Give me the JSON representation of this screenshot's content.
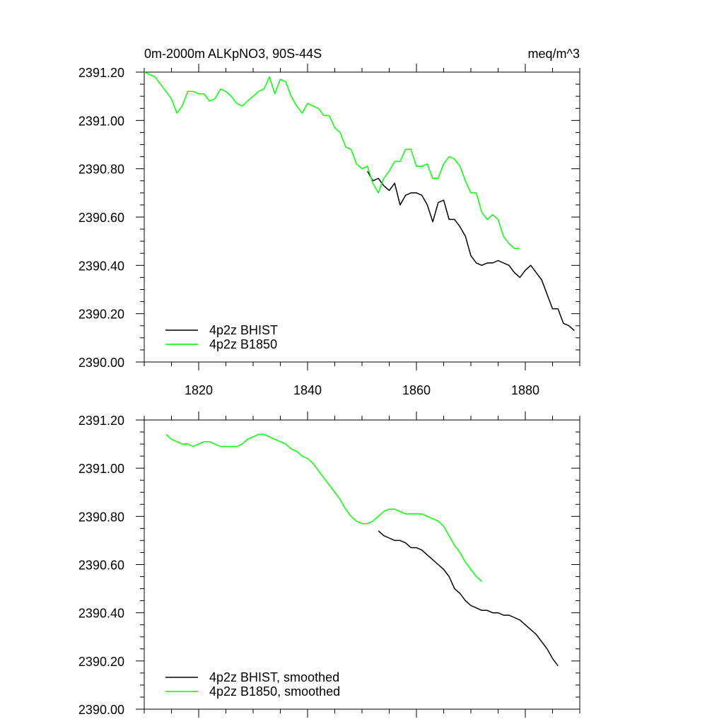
{
  "chart_data": [
    {
      "type": "line",
      "title": "0m-2000m ALKpNO3, 90S-44S",
      "units": "meq/m^3",
      "xlim": [
        1810,
        1890
      ],
      "ylim": [
        2390.0,
        2391.2
      ],
      "xticks": [
        1820,
        1840,
        1860,
        1880
      ],
      "xtick_labels": [
        "1820",
        "1840",
        "1860",
        "1880"
      ],
      "yticks": [
        2390.0,
        2390.2,
        2390.4,
        2390.6,
        2390.8,
        2391.0,
        2391.2
      ],
      "ytick_labels": [
        "2390.00",
        "2390.20",
        "2390.40",
        "2390.60",
        "2390.80",
        "2391.00",
        "2391.20"
      ],
      "show_xtick_labels": true,
      "grid": false,
      "legend_position": "bottom-left",
      "series": [
        {
          "name": "4p2z BHIST",
          "color": "#000000",
          "x": [
            1851,
            1852,
            1853,
            1854,
            1855,
            1856,
            1857,
            1858,
            1859,
            1860,
            1861,
            1862,
            1863,
            1864,
            1865,
            1866,
            1867,
            1868,
            1869,
            1870,
            1871,
            1872,
            1873,
            1874,
            1875,
            1876,
            1877,
            1878,
            1879,
            1880,
            1881,
            1882,
            1883,
            1884,
            1885,
            1886,
            1887,
            1888,
            1889
          ],
          "y": [
            2390.79,
            2390.75,
            2390.76,
            2390.73,
            2390.71,
            2390.74,
            2390.65,
            2390.69,
            2390.7,
            2390.7,
            2390.69,
            2390.65,
            2390.58,
            2390.66,
            2390.67,
            2390.59,
            2390.59,
            2390.56,
            2390.52,
            2390.44,
            2390.41,
            2390.4,
            2390.41,
            2390.41,
            2390.42,
            2390.41,
            2390.4,
            2390.37,
            2390.35,
            2390.38,
            2390.4,
            2390.37,
            2390.34,
            2390.28,
            2390.22,
            2390.22,
            2390.16,
            2390.15,
            2390.13
          ]
        },
        {
          "name": "4p2z B1850",
          "color": "#00ff00",
          "x": [
            1810,
            1811,
            1812,
            1813,
            1814,
            1815,
            1816,
            1817,
            1818,
            1819,
            1820,
            1821,
            1822,
            1823,
            1824,
            1825,
            1826,
            1827,
            1828,
            1829,
            1830,
            1831,
            1832,
            1833,
            1834,
            1835,
            1836,
            1837,
            1838,
            1839,
            1840,
            1841,
            1842,
            1843,
            1844,
            1845,
            1846,
            1847,
            1848,
            1849,
            1850,
            1851,
            1852,
            1853,
            1854,
            1855,
            1856,
            1857,
            1858,
            1859,
            1860,
            1861,
            1862,
            1863,
            1864,
            1865,
            1866,
            1867,
            1868,
            1869,
            1870,
            1871,
            1872,
            1873,
            1874,
            1875,
            1876,
            1877,
            1878,
            1879,
            1880
          ],
          "y": [
            2391.2,
            2391.19,
            2391.18,
            2391.15,
            2391.12,
            2391.09,
            2391.03,
            2391.06,
            2391.12,
            2391.12,
            2391.11,
            2391.11,
            2391.08,
            2391.09,
            2391.13,
            2391.12,
            2391.1,
            2391.07,
            2391.06,
            2391.08,
            2391.1,
            2391.12,
            2391.13,
            2391.18,
            2391.11,
            2391.17,
            2391.16,
            2391.1,
            2391.06,
            2391.03,
            2391.07,
            2391.06,
            2391.05,
            2391.02,
            2391.02,
            2390.97,
            2390.95,
            2390.89,
            2390.88,
            2390.82,
            2390.8,
            2390.81,
            2390.74,
            2390.7,
            2390.76,
            2390.79,
            2390.83,
            2390.83,
            2390.88,
            2390.88,
            2390.81,
            2390.81,
            2390.82,
            2390.76,
            2390.76,
            2390.82,
            2390.85,
            2390.84,
            2390.81,
            2390.75,
            2390.7,
            2390.7,
            2390.62,
            2390.59,
            2390.61,
            2390.59,
            2390.52,
            2390.49,
            2390.47,
            2390.47,
            null
          ]
        }
      ]
    },
    {
      "type": "line",
      "xlim": [
        1810,
        1890
      ],
      "ylim": [
        2390.0,
        2391.2
      ],
      "xticks": [
        1820,
        1840,
        1860,
        1880
      ],
      "yticks": [
        2390.0,
        2390.2,
        2390.4,
        2390.6,
        2390.8,
        2391.0,
        2391.2
      ],
      "ytick_labels": [
        "2390.00",
        "2390.20",
        "2390.40",
        "2390.60",
        "2390.80",
        "2391.00",
        "2391.20"
      ],
      "show_xtick_labels": false,
      "grid": false,
      "legend_position": "bottom-left",
      "series": [
        {
          "name": "4p2z BHIST, smoothed",
          "color": "#000000",
          "x": [
            1853,
            1854,
            1855,
            1856,
            1857,
            1858,
            1859,
            1860,
            1861,
            1862,
            1863,
            1864,
            1865,
            1866,
            1867,
            1868,
            1869,
            1870,
            1871,
            1872,
            1873,
            1874,
            1875,
            1876,
            1877,
            1878,
            1879,
            1880,
            1881,
            1882,
            1883,
            1884,
            1885,
            1886,
            1887
          ],
          "y": [
            2390.74,
            2390.72,
            2390.71,
            2390.7,
            2390.7,
            2390.69,
            2390.67,
            2390.67,
            2390.66,
            2390.64,
            2390.62,
            2390.6,
            2390.58,
            2390.55,
            2390.5,
            2390.48,
            2390.45,
            2390.43,
            2390.42,
            2390.41,
            2390.41,
            2390.4,
            2390.4,
            2390.39,
            2390.39,
            2390.38,
            2390.37,
            2390.35,
            2390.33,
            2390.31,
            2390.28,
            2390.25,
            2390.21,
            2390.18,
            null
          ]
        },
        {
          "name": "4p2z B1850, smoothed",
          "color": "#00ff00",
          "x": [
            1814,
            1815,
            1816,
            1817,
            1818,
            1819,
            1820,
            1821,
            1822,
            1823,
            1824,
            1825,
            1826,
            1827,
            1828,
            1829,
            1830,
            1831,
            1832,
            1833,
            1834,
            1835,
            1836,
            1837,
            1838,
            1839,
            1840,
            1841,
            1842,
            1843,
            1844,
            1845,
            1846,
            1847,
            1848,
            1849,
            1850,
            1851,
            1852,
            1853,
            1854,
            1855,
            1856,
            1857,
            1858,
            1859,
            1860,
            1861,
            1862,
            1863,
            1864,
            1865,
            1866,
            1867,
            1868,
            1869,
            1870,
            1871,
            1872,
            1873,
            1874,
            1875,
            1876,
            1877
          ],
          "y": [
            2391.14,
            2391.12,
            2391.11,
            2391.1,
            2391.1,
            2391.09,
            2391.1,
            2391.11,
            2391.11,
            2391.1,
            2391.09,
            2391.09,
            2391.09,
            2391.09,
            2391.1,
            2391.12,
            2391.13,
            2391.14,
            2391.14,
            2391.13,
            2391.12,
            2391.11,
            2391.1,
            2391.08,
            2391.07,
            2391.05,
            2391.04,
            2391.02,
            2390.99,
            2390.96,
            2390.93,
            2390.9,
            2390.87,
            2390.83,
            2390.8,
            2390.78,
            2390.77,
            2390.77,
            2390.78,
            2390.8,
            2390.82,
            2390.83,
            2390.83,
            2390.82,
            2390.81,
            2390.81,
            2390.81,
            2390.81,
            2390.8,
            2390.79,
            2390.78,
            2390.76,
            2390.72,
            2390.68,
            2390.65,
            2390.61,
            2390.58,
            2390.55,
            2390.53,
            null,
            null,
            null,
            null,
            null
          ]
        }
      ]
    }
  ]
}
